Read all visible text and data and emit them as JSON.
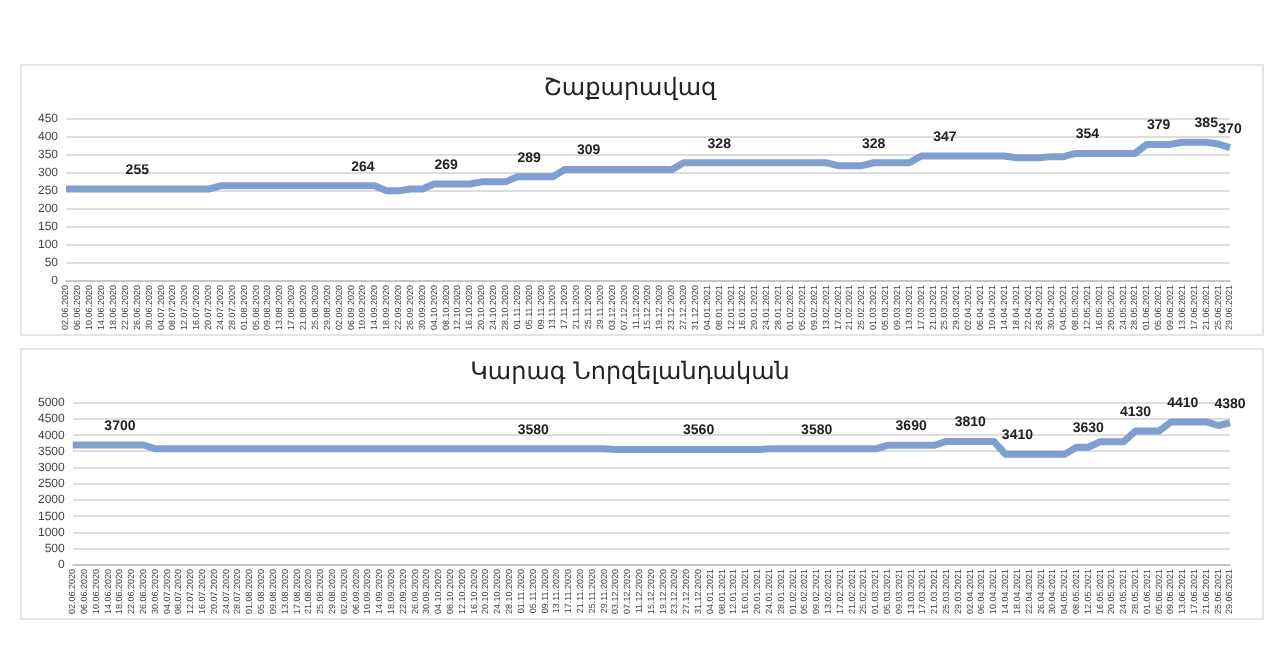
{
  "chart_data": [
    {
      "type": "line",
      "title": "Շաքարավազ",
      "categories": [
        "02.06.2020",
        "06.06.2020",
        "10.06.2020",
        "14.06.2020",
        "18.06.2020",
        "22.06.2020",
        "26.06.2020",
        "30.06.2020",
        "04.07.2020",
        "08.07.2020",
        "12.07.2020",
        "16.07.2020",
        "20.07.2020",
        "24.07.2020",
        "28.07.2020",
        "01.08.2020",
        "05.08.2020",
        "09.08.2020",
        "13.08.2020",
        "17.08.2020",
        "21.08.2020",
        "25.08.2020",
        "29.08.2020",
        "02.09.2020",
        "06.09.2020",
        "10.09.2020",
        "14.09.2020",
        "18.09.2020",
        "22.09.2020",
        "26.09.2020",
        "30.09.2020",
        "04.10.2020",
        "08.10.2020",
        "12.10.2020",
        "16.10.2020",
        "20.10.2020",
        "24.10.2020",
        "28.10.2020",
        "01.11.2020",
        "05.11.2020",
        "09.11.2020",
        "13.11.2020",
        "17.11.2020",
        "21.11.2020",
        "25.11.2020",
        "29.11.2020",
        "03.12.2020",
        "07.12.2020",
        "11.12.2020",
        "15.12.2020",
        "19.12.2020",
        "23.12.2020",
        "27.12.2020",
        "31.12.2020",
        "04.01.2021",
        "08.01.2021",
        "12.01.2021",
        "16.01.2021",
        "20.01.2021",
        "24.01.2021",
        "28.01.2021",
        "01.02.2021",
        "05.02.2021",
        "09.02.2021",
        "13.02.2021",
        "17.02.2021",
        "21.02.2021",
        "25.02.2021",
        "01.03.2021",
        "05.03.2021",
        "09.03.2021",
        "13.03.2021",
        "17.03.2021",
        "21.03.2021",
        "25.03.2021",
        "29.03.2021",
        "02.04.2021",
        "06.04.2021",
        "10.04.2021",
        "14.04.2021",
        "18.04.2021",
        "22.04.2021",
        "26.04.2021",
        "30.04.2021",
        "04.05.2021",
        "08.05.2021",
        "12.05.2021",
        "16.05.2021",
        "20.05.2021",
        "24.05.2021",
        "28.05.2021",
        "01.06.2021",
        "05.06.2021",
        "09.06.2021",
        "13.06.2021",
        "17.06.2021",
        "21.06.2021",
        "25.06.2021",
        "29.06.2021"
      ],
      "series": [
        {
          "color": "#7f9fd0",
          "values": [
            255,
            255,
            255,
            255,
            255,
            255,
            255,
            255,
            255,
            255,
            255,
            255,
            255,
            264,
            264,
            264,
            264,
            264,
            264,
            264,
            264,
            264,
            264,
            264,
            264,
            264,
            264,
            250,
            250,
            255,
            255,
            269,
            269,
            269,
            269,
            275,
            275,
            275,
            289,
            289,
            289,
            289,
            309,
            309,
            309,
            309,
            309,
            309,
            309,
            309,
            309,
            309,
            328,
            328,
            328,
            328,
            328,
            328,
            328,
            328,
            328,
            328,
            328,
            328,
            328,
            320,
            320,
            320,
            328,
            328,
            328,
            328,
            347,
            347,
            347,
            347,
            347,
            347,
            347,
            347,
            342,
            342,
            342,
            345,
            345,
            354,
            354,
            354,
            354,
            354,
            354,
            379,
            379,
            379,
            385,
            385,
            385,
            380,
            370
          ],
          "value_labels": [
            null,
            null,
            null,
            null,
            null,
            null,
            "255",
            null,
            null,
            null,
            null,
            null,
            null,
            null,
            null,
            null,
            null,
            null,
            null,
            null,
            null,
            null,
            null,
            null,
            null,
            "264",
            null,
            null,
            null,
            null,
            null,
            null,
            "269",
            null,
            null,
            null,
            null,
            null,
            null,
            "289",
            null,
            null,
            null,
            null,
            "309",
            null,
            null,
            null,
            null,
            null,
            null,
            null,
            null,
            null,
            null,
            "328",
            null,
            null,
            null,
            null,
            null,
            null,
            null,
            null,
            null,
            null,
            null,
            null,
            "328",
            null,
            null,
            null,
            null,
            null,
            "347",
            null,
            null,
            null,
            null,
            null,
            null,
            null,
            null,
            null,
            null,
            null,
            "354",
            null,
            null,
            null,
            null,
            null,
            "379",
            null,
            null,
            null,
            "385",
            null,
            "370"
          ]
        }
      ],
      "ylim": [
        0,
        450
      ],
      "yticks": [
        0,
        50,
        100,
        150,
        200,
        250,
        300,
        350,
        400,
        450
      ],
      "grid": "y",
      "legend": false
    },
    {
      "type": "line",
      "title": "Կարագ Նորզելանդական",
      "categories": [
        "02.06.2020",
        "06.06.2020",
        "10.06.2020",
        "14.06.2020",
        "18.06.2020",
        "22.06.2020",
        "26.06.2020",
        "30.06.2020",
        "04.07.2020",
        "08.07.2020",
        "12.07.2020",
        "16.07.2020",
        "20.07.2020",
        "24.07.2020",
        "28.07.2020",
        "01.08.2020",
        "05.08.2020",
        "09.08.2020",
        "13.08.2020",
        "17.08.2020",
        "21.08.2020",
        "25.08.2020",
        "29.08.2020",
        "02.09.2020",
        "06.09.2020",
        "10.09.2020",
        "14.09.2020",
        "18.09.2020",
        "22.09.2020",
        "26.09.2020",
        "30.09.2020",
        "04.10.2020",
        "08.10.2020",
        "12.10.2020",
        "16.10.2020",
        "20.10.2020",
        "24.10.2020",
        "28.10.2020",
        "01.11.2020",
        "05.11.2020",
        "09.11.2020",
        "13.11.2020",
        "17.11.2020",
        "21.11.2020",
        "25.11.2020",
        "29.11.2020",
        "03.12.2020",
        "07.12.2020",
        "11.12.2020",
        "15.12.2020",
        "19.12.2020",
        "23.12.2020",
        "27.12.2020",
        "31.12.2020",
        "04.01.2021",
        "08.01.2021",
        "12.01.2021",
        "16.01.2021",
        "20.01.2021",
        "24.01.2021",
        "28.01.2021",
        "01.02.2021",
        "05.02.2021",
        "09.02.2021",
        "13.02.2021",
        "17.02.2021",
        "21.02.2021",
        "25.02.2021",
        "01.03.2021",
        "05.03.2021",
        "09.03.2021",
        "13.03.2021",
        "17.03.2021",
        "21.03.2021",
        "25.03.2021",
        "29.03.2021",
        "02.04.2021",
        "06.04.2021",
        "10.04.2021",
        "14.04.2021",
        "18.04.2021",
        "22.04.2021",
        "26.04.2021",
        "30.04.2021",
        "04.05.2021",
        "08.05.2021",
        "12.05.2021",
        "16.05.2021",
        "20.05.2021",
        "24.05.2021",
        "28.05.2021",
        "01.06.2021",
        "05.06.2021",
        "09.06.2021",
        "13.06.2021",
        "17.06.2021",
        "21.06.2021",
        "25.06.2021",
        "29.06.2021"
      ],
      "series": [
        {
          "color": "#7f9fd0",
          "values": [
            3700,
            3700,
            3700,
            3700,
            3700,
            3700,
            3700,
            3580,
            3580,
            3580,
            3580,
            3580,
            3580,
            3580,
            3580,
            3580,
            3580,
            3580,
            3580,
            3580,
            3580,
            3580,
            3580,
            3580,
            3580,
            3580,
            3580,
            3580,
            3580,
            3580,
            3580,
            3580,
            3580,
            3580,
            3580,
            3580,
            3580,
            3580,
            3580,
            3580,
            3580,
            3580,
            3580,
            3580,
            3580,
            3580,
            3560,
            3560,
            3560,
            3560,
            3560,
            3560,
            3560,
            3560,
            3560,
            3560,
            3560,
            3560,
            3560,
            3580,
            3580,
            3580,
            3580,
            3580,
            3580,
            3580,
            3580,
            3580,
            3580,
            3690,
            3690,
            3690,
            3690,
            3690,
            3810,
            3810,
            3810,
            3810,
            3810,
            3410,
            3410,
            3410,
            3410,
            3410,
            3410,
            3630,
            3630,
            3800,
            3800,
            3800,
            4130,
            4130,
            4130,
            4410,
            4410,
            4410,
            4410,
            4300,
            4380
          ],
          "value_labels": [
            null,
            null,
            null,
            null,
            "3700",
            null,
            null,
            null,
            null,
            null,
            null,
            null,
            null,
            null,
            null,
            null,
            null,
            null,
            null,
            null,
            null,
            null,
            null,
            null,
            null,
            null,
            null,
            null,
            null,
            null,
            null,
            null,
            null,
            null,
            null,
            null,
            null,
            null,
            null,
            "3580",
            null,
            null,
            null,
            null,
            null,
            null,
            null,
            null,
            null,
            null,
            null,
            null,
            null,
            "3560",
            null,
            null,
            null,
            null,
            null,
            null,
            null,
            null,
            null,
            "3580",
            null,
            null,
            null,
            null,
            null,
            null,
            null,
            "3690",
            null,
            null,
            null,
            null,
            "3810",
            null,
            null,
            null,
            "3410",
            null,
            null,
            null,
            null,
            null,
            "3630",
            null,
            null,
            null,
            "4130",
            null,
            null,
            null,
            "4410",
            null,
            null,
            null,
            "4380"
          ]
        }
      ],
      "ylim": [
        0,
        5000
      ],
      "yticks": [
        0,
        500,
        1000,
        1500,
        2000,
        2500,
        3000,
        3500,
        4000,
        4500,
        5000
      ],
      "grid": "y",
      "legend": false
    }
  ]
}
